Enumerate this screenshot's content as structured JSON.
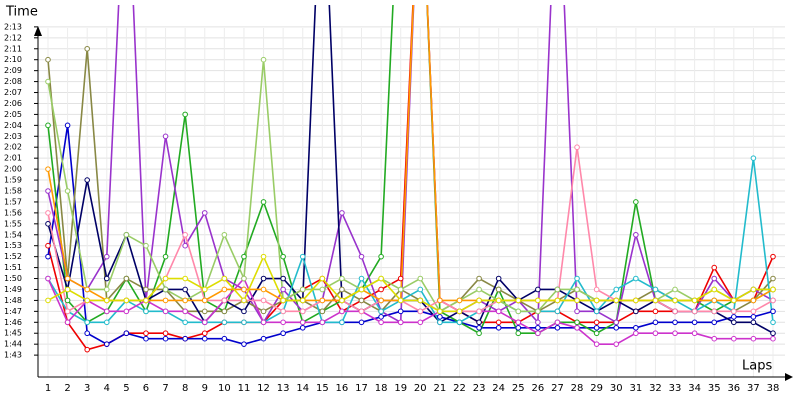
{
  "chart_data": {
    "type": "line",
    "ylabel": "Time",
    "xlabel": "Laps",
    "categories": [
      "1",
      "2",
      "3",
      "4",
      "5",
      "6",
      "7",
      "8",
      "9",
      "10",
      "11",
      "12",
      "13",
      "14",
      "15",
      "16",
      "17",
      "18",
      "19",
      "20",
      "21",
      "22",
      "23",
      "24",
      "25",
      "26",
      "27",
      "28",
      "29",
      "30",
      "31",
      "32",
      "33",
      "34",
      "35",
      "36",
      "37",
      "38"
    ],
    "ylim": [
      101,
      135
    ],
    "yticks": [
      {
        "value": 103,
        "label": "1:43"
      },
      {
        "value": 104,
        "label": "1:44"
      },
      {
        "value": 105,
        "label": "1:45"
      },
      {
        "value": 106,
        "label": "1:46"
      },
      {
        "value": 107,
        "label": "1:47"
      },
      {
        "value": 108,
        "label": "1:48"
      },
      {
        "value": 109,
        "label": "1:49"
      },
      {
        "value": 110,
        "label": "1:50"
      },
      {
        "value": 111,
        "label": "1:51"
      },
      {
        "value": 112,
        "label": "1:52"
      },
      {
        "value": 113,
        "label": "1:53"
      },
      {
        "value": 114,
        "label": "1:54"
      },
      {
        "value": 115,
        "label": "1:55"
      },
      {
        "value": 116,
        "label": "1:56"
      },
      {
        "value": 117,
        "label": "1:57"
      },
      {
        "value": 118,
        "label": "1:58"
      },
      {
        "value": 119,
        "label": "1:59"
      },
      {
        "value": 120,
        "label": "2:00"
      },
      {
        "value": 121,
        "label": "2:01"
      },
      {
        "value": 122,
        "label": "2:02"
      },
      {
        "value": 123,
        "label": "2:03"
      },
      {
        "value": 124,
        "label": "2:04"
      },
      {
        "value": 125,
        "label": "2:05"
      },
      {
        "value": 126,
        "label": "2:06"
      },
      {
        "value": 127,
        "label": "2:07"
      },
      {
        "value": 128,
        "label": "2:08"
      },
      {
        "value": 129,
        "label": "2:09"
      },
      {
        "value": 130,
        "label": "2:10"
      },
      {
        "value": 131,
        "label": "2:11"
      },
      {
        "value": 132,
        "label": "2:12"
      },
      {
        "value": 133,
        "label": "2:13"
      }
    ],
    "grid": true,
    "series": [
      {
        "color": "#ee0000",
        "values": [
          113,
          106,
          103.5,
          104,
          105,
          105,
          105,
          104.5,
          105,
          106,
          106,
          106,
          108,
          109,
          110,
          107,
          108,
          109,
          110,
          150,
          108,
          107,
          106,
          106,
          106,
          107,
          107,
          106,
          106,
          106,
          107,
          107,
          107,
          107,
          111,
          108,
          108,
          112
        ]
      },
      {
        "color": "#0000cc",
        "values": [
          112,
          124,
          105,
          104,
          105,
          104.5,
          104.5,
          104.5,
          104.5,
          104.5,
          104,
          104.5,
          105,
          105.5,
          106,
          106,
          106,
          106.5,
          107,
          107,
          106.5,
          106,
          105.5,
          105.5,
          105.5,
          105.5,
          105.5,
          105.5,
          105.5,
          105.5,
          105.5,
          106,
          106,
          106,
          106,
          106.5,
          106.5,
          107
        ]
      },
      {
        "color": "#22aa22",
        "values": [
          124,
          108,
          106,
          107,
          110,
          107,
          112,
          125,
          108,
          107,
          112,
          117,
          112,
          106,
          107,
          108,
          109,
          112,
          150,
          150,
          107,
          106,
          105,
          109,
          105,
          105,
          106,
          106,
          105,
          106,
          117,
          108,
          108,
          108,
          107,
          108,
          109,
          109
        ]
      },
      {
        "color": "#9933cc",
        "values": [
          118,
          110,
          109,
          112,
          150,
          108,
          123,
          113,
          116,
          110,
          109,
          106,
          109,
          107,
          108,
          116,
          112,
          107,
          106,
          150,
          108,
          107,
          108,
          107,
          108,
          106,
          150,
          107,
          107,
          106,
          114,
          108,
          107,
          107,
          110,
          108,
          109,
          108
        ]
      },
      {
        "color": "#888844",
        "values": [
          130,
          110,
          131,
          108,
          110,
          109,
          109,
          107,
          107,
          107,
          108,
          107,
          108,
          108,
          107,
          109,
          108,
          107,
          109,
          108,
          107,
          108,
          110,
          109,
          108,
          107,
          108,
          109,
          108,
          108,
          108,
          109,
          108,
          108,
          108,
          107,
          108,
          110
        ]
      },
      {
        "color": "#000066",
        "values": [
          115,
          109,
          119,
          110,
          114,
          108,
          109,
          109,
          106,
          108,
          107,
          110,
          110,
          108,
          150,
          108,
          107,
          108,
          108,
          108,
          106,
          107,
          106,
          110,
          108,
          109,
          109,
          108,
          107,
          108,
          107,
          108,
          107,
          107,
          107,
          106,
          106,
          105
        ]
      },
      {
        "color": "#22bbcc",
        "values": [
          110,
          107,
          106,
          106,
          108,
          107,
          107,
          106,
          106,
          106,
          106,
          106,
          107,
          112,
          106,
          106,
          110,
          107,
          108,
          109,
          106,
          106,
          107,
          108,
          107,
          107,
          107,
          110,
          107,
          109,
          110,
          109,
          108,
          107,
          108,
          107,
          121,
          106
        ]
      },
      {
        "color": "#cc33cc",
        "values": [
          110,
          106,
          108,
          107,
          107,
          108,
          107,
          107,
          106,
          108,
          110,
          106,
          106,
          106,
          106,
          107,
          107,
          106,
          106,
          106,
          107,
          107,
          107,
          107,
          106,
          105,
          106,
          105.5,
          104,
          104,
          105,
          105,
          105,
          105,
          104.5,
          104.5,
          104.5,
          104.5
        ]
      },
      {
        "color": "#99cc66",
        "values": [
          128,
          118,
          109,
          109,
          114,
          113,
          109,
          108,
          109,
          114,
          110,
          130,
          108,
          109,
          109,
          110,
          109,
          110,
          109,
          110,
          107,
          108,
          109,
          108,
          107,
          107,
          109,
          109,
          108,
          108,
          108,
          108,
          109,
          108,
          109,
          108,
          108,
          109
        ]
      },
      {
        "color": "#ff88aa",
        "values": [
          116,
          107,
          108,
          108,
          108,
          108,
          110,
          114,
          108,
          108,
          108,
          108,
          107,
          107,
          108,
          108,
          107,
          108,
          108,
          107,
          108,
          107,
          107,
          108,
          108,
          108,
          108,
          122,
          109,
          108,
          108,
          108,
          107,
          107,
          107,
          107,
          107,
          108
        ]
      },
      {
        "color": "#ff9900",
        "values": [
          120,
          110,
          109,
          108,
          108,
          108,
          108,
          108,
          108,
          109,
          109,
          109,
          108,
          108,
          108,
          108,
          109,
          108,
          108,
          150,
          108,
          108,
          108,
          108,
          108,
          108,
          108,
          108,
          108,
          108,
          108,
          108,
          108,
          108,
          108,
          108,
          108,
          109
        ]
      },
      {
        "color": "#dddd00",
        "values": [
          108,
          109,
          108,
          108,
          108,
          108,
          110,
          110,
          109,
          110,
          108,
          112,
          108,
          108,
          110,
          108,
          109,
          110,
          108,
          108,
          107,
          107,
          108,
          108,
          108,
          108,
          108,
          108,
          108,
          108,
          108,
          108,
          108,
          108,
          109,
          108,
          109,
          109
        ]
      }
    ]
  }
}
